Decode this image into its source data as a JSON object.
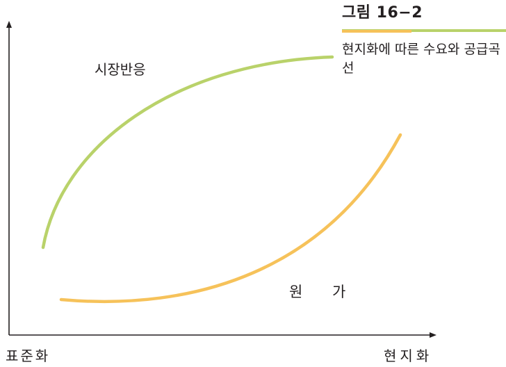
{
  "figure": {
    "number": "그림 16−2",
    "caption": "현지화에 따른 수요와 공급곡선"
  },
  "curves": {
    "market_response": {
      "label": "시장반응",
      "color": "#b9d26a"
    },
    "cost": {
      "label": "원 가",
      "color": "#f6c25a"
    }
  },
  "axes": {
    "x_left_label": "표준화",
    "x_right_label": "현지화",
    "color": "#231f20"
  },
  "colors": {
    "title_rule_green": "#b9d26a",
    "title_rule_orange": "#f6c25a"
  }
}
